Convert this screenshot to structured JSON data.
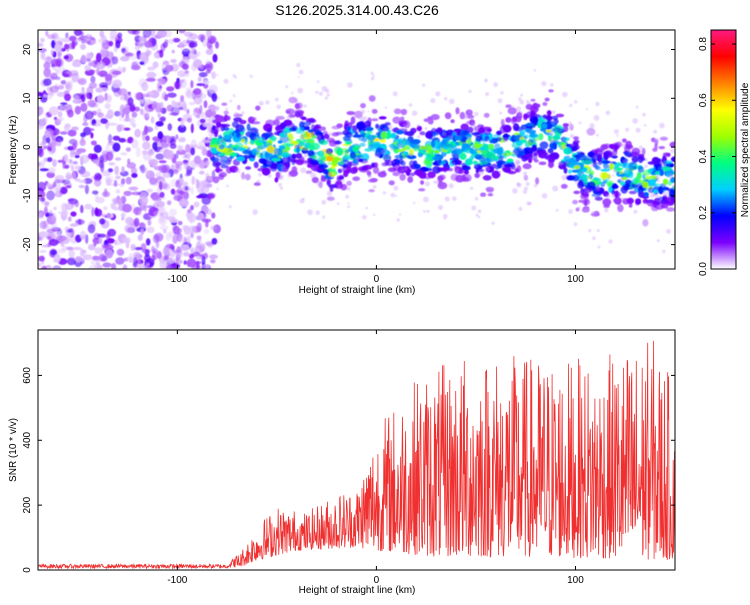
{
  "title": "S126.2025.314.00.43.C26",
  "chart_data": [
    {
      "type": "heatmap",
      "name": "spectrogram",
      "xlabel": "Height of straight line (km)",
      "ylabel": "Frequency (Hz)",
      "xlim": [
        -170,
        150
      ],
      "ylim": [
        -25,
        24
      ],
      "xticks": [
        "-100",
        "0",
        "100"
      ],
      "yticks": [
        "-20",
        "-10",
        "0",
        "10",
        "20"
      ],
      "colorbar": {
        "label": "Normalized spectral amplitude",
        "range": [
          0.0,
          0.85
        ],
        "ticks": [
          "0.0",
          "0.2",
          "0.4",
          "0.6",
          "0.8"
        ],
        "colors": [
          "#ffffff",
          "#7b00ff",
          "#0000ff",
          "#00d0ff",
          "#00ff80",
          "#a0ff00",
          "#ffff00",
          "#ff8000",
          "#ff0000",
          "#ff1a80"
        ]
      },
      "ridge": [
        {
          "x": -80,
          "y": 0
        },
        {
          "x": -70,
          "y": 1
        },
        {
          "x": -60,
          "y": 0
        },
        {
          "x": -50,
          "y": -1
        },
        {
          "x": -40,
          "y": 2
        },
        {
          "x": -33,
          "y": 1
        },
        {
          "x": -28,
          "y": -1
        },
        {
          "x": -22,
          "y": -4
        },
        {
          "x": -15,
          "y": 0
        },
        {
          "x": 0,
          "y": 1
        },
        {
          "x": 10,
          "y": 0
        },
        {
          "x": 25,
          "y": -1
        },
        {
          "x": 40,
          "y": 0
        },
        {
          "x": 55,
          "y": -1
        },
        {
          "x": 70,
          "y": 0
        },
        {
          "x": 80,
          "y": 3
        },
        {
          "x": 90,
          "y": 2
        },
        {
          "x": 100,
          "y": -4
        },
        {
          "x": 110,
          "y": -6
        },
        {
          "x": 125,
          "y": -5
        },
        {
          "x": 140,
          "y": -7
        },
        {
          "x": 150,
          "y": -6
        }
      ]
    },
    {
      "type": "line",
      "name": "snr",
      "xlabel": "Height of straight line (km)",
      "ylabel": "SNR (10 * v/v)",
      "xlim": [
        -170,
        150
      ],
      "ylim": [
        0,
        740
      ],
      "xticks": [
        "-100",
        "0",
        "100"
      ],
      "yticks": [
        "0",
        "200",
        "400",
        "600"
      ],
      "color": "#f03030",
      "envelope": [
        {
          "x": -170,
          "y": 18
        },
        {
          "x": -75,
          "y": 18
        },
        {
          "x": -68,
          "y": 60
        },
        {
          "x": -60,
          "y": 140
        },
        {
          "x": -50,
          "y": 200
        },
        {
          "x": -35,
          "y": 180
        },
        {
          "x": -20,
          "y": 240
        },
        {
          "x": -10,
          "y": 260
        },
        {
          "x": 0,
          "y": 450
        },
        {
          "x": 20,
          "y": 600
        },
        {
          "x": 50,
          "y": 680
        },
        {
          "x": 80,
          "y": 660
        },
        {
          "x": 110,
          "y": 650
        },
        {
          "x": 140,
          "y": 720
        },
        {
          "x": 150,
          "y": 560
        }
      ],
      "baseline": [
        {
          "x": -170,
          "y": 5
        },
        {
          "x": -75,
          "y": 5
        },
        {
          "x": -68,
          "y": 10
        },
        {
          "x": -60,
          "y": 30
        },
        {
          "x": -40,
          "y": 60
        },
        {
          "x": -10,
          "y": 70
        },
        {
          "x": 0,
          "y": 60
        },
        {
          "x": 30,
          "y": 40
        },
        {
          "x": 80,
          "y": 40
        },
        {
          "x": 150,
          "y": 30
        }
      ]
    }
  ]
}
